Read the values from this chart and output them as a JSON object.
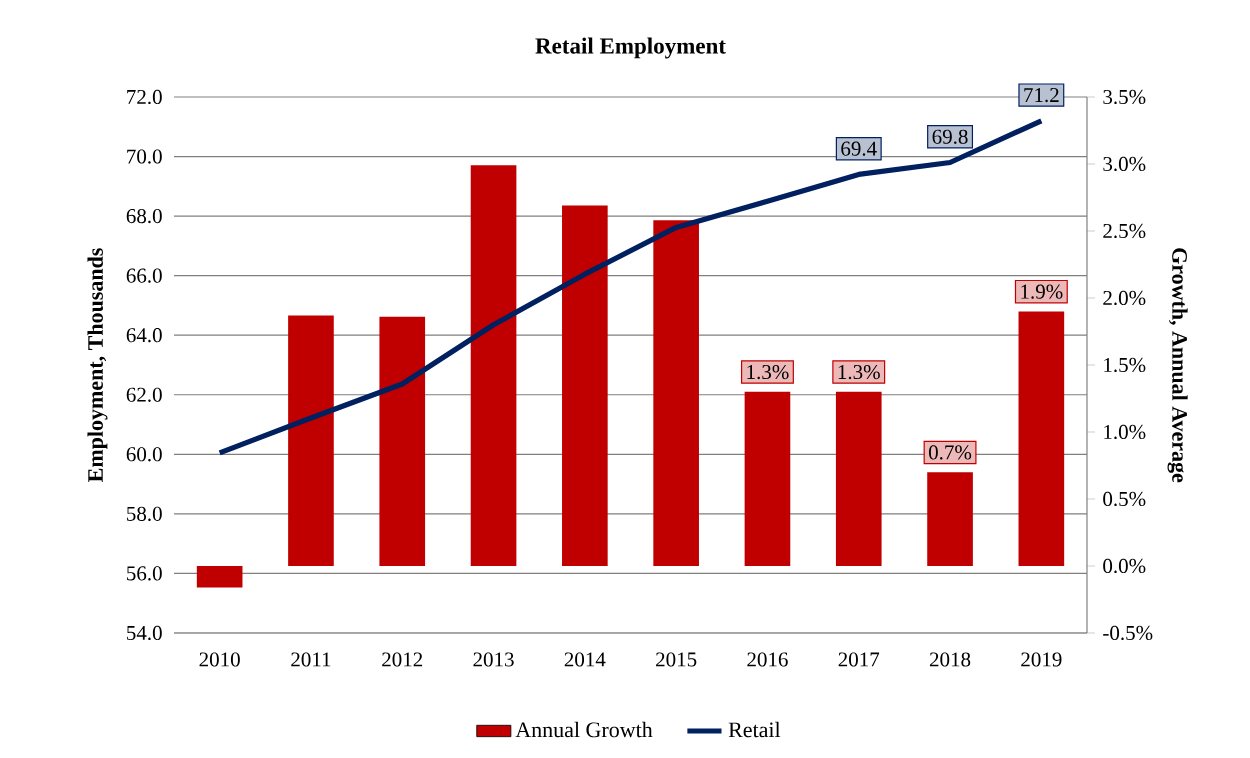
{
  "chart_data": {
    "type": "bar",
    "title": "Retail  Employment",
    "ylabel": "Employment, Thousands",
    "y2label": "Growth, Annual Average",
    "categories": [
      "2010",
      "2011",
      "2012",
      "2013",
      "2014",
      "2015",
      "2016",
      "2017",
      "2018",
      "2019"
    ],
    "series": [
      {
        "name": "Annual Growth",
        "axis": "y2",
        "color": "#c00000",
        "values": [
          -0.16,
          1.87,
          1.86,
          2.99,
          2.69,
          2.58,
          1.3,
          1.3,
          0.7,
          1.9
        ],
        "value_labels": [
          null,
          null,
          null,
          null,
          null,
          null,
          "1.3%",
          "1.3%",
          "0.7%",
          "1.9%"
        ]
      },
      {
        "name": "Retail",
        "type": "line",
        "color": "#002060",
        "values": [
          60.05,
          61.22,
          62.36,
          64.35,
          66.05,
          67.62,
          68.5,
          69.4,
          69.8,
          71.2
        ],
        "value_labels": [
          null,
          null,
          null,
          null,
          null,
          null,
          null,
          "69.4",
          "69.8",
          "71.2"
        ]
      }
    ],
    "ylim": [
      54,
      72
    ],
    "yticks": [
      {
        "value": 54,
        "label": "54.0"
      },
      {
        "value": 56,
        "label": "56.0"
      },
      {
        "value": 58,
        "label": "58.0"
      },
      {
        "value": 60,
        "label": "60.0"
      },
      {
        "value": 62,
        "label": "62.0"
      },
      {
        "value": 64,
        "label": "64.0"
      },
      {
        "value": 66,
        "label": "66.0"
      },
      {
        "value": 68,
        "label": "68.0"
      },
      {
        "value": 70,
        "label": "70.0"
      },
      {
        "value": 72,
        "label": "72.0"
      }
    ],
    "y2lim": [
      -0.5,
      3.5
    ],
    "y2ticks": [
      {
        "value": -0.5,
        "label": "-0.5%"
      },
      {
        "value": 0,
        "label": "0.0%"
      },
      {
        "value": 0.5,
        "label": "0.5%"
      },
      {
        "value": 1,
        "label": "1.0%"
      },
      {
        "value": 1.5,
        "label": "1.5%"
      },
      {
        "value": 2,
        "label": "2.0%"
      },
      {
        "value": 2.5,
        "label": "2.5%"
      },
      {
        "value": 3,
        "label": "3.0%"
      },
      {
        "value": 3.5,
        "label": "3.5%"
      }
    ],
    "grid": "y",
    "legend": "bottom",
    "marker": "none",
    "line_style": "solid"
  }
}
